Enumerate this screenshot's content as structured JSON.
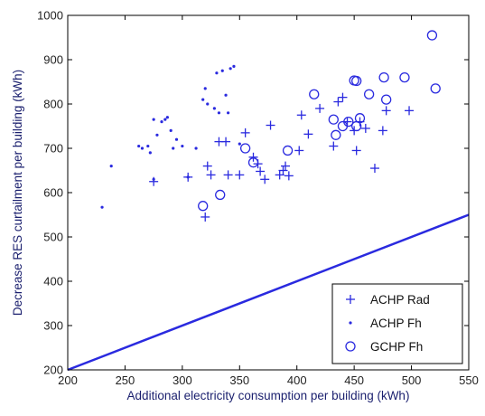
{
  "chart_data": {
    "type": "scatter",
    "title": "",
    "xlabel": "Additional electricity consumption per building (kWh)",
    "ylabel": "Decrease RES curtailment per building (kWh)",
    "xlim": [
      200,
      550
    ],
    "ylim": [
      200,
      1000
    ],
    "xticks": [
      "200",
      "250",
      "300",
      "350",
      "400",
      "450",
      "500",
      "550"
    ],
    "yticks": [
      "200",
      "300",
      "400",
      "500",
      "600",
      "700",
      "800",
      "900",
      "1000"
    ],
    "grid": false,
    "legend_position": "bottom-right",
    "color": "#2a2adf",
    "series": [
      {
        "name": "ACHP Rad",
        "marker": "plus",
        "points": [
          [
            275,
            625
          ],
          [
            305,
            635
          ],
          [
            320,
            545
          ],
          [
            322,
            660
          ],
          [
            325,
            640
          ],
          [
            332,
            715
          ],
          [
            338,
            715
          ],
          [
            340,
            640
          ],
          [
            350,
            640
          ],
          [
            355,
            735
          ],
          [
            362,
            680
          ],
          [
            366,
            665
          ],
          [
            368,
            648
          ],
          [
            372,
            630
          ],
          [
            377,
            752
          ],
          [
            385,
            640
          ],
          [
            388,
            650
          ],
          [
            390,
            660
          ],
          [
            393,
            638
          ],
          [
            402,
            695
          ],
          [
            404,
            775
          ],
          [
            410,
            732
          ],
          [
            420,
            790
          ],
          [
            432,
            705
          ],
          [
            436,
            805
          ],
          [
            440,
            815
          ],
          [
            444,
            760
          ],
          [
            450,
            740
          ],
          [
            452,
            695
          ],
          [
            455,
            760
          ],
          [
            460,
            745
          ],
          [
            468,
            655
          ],
          [
            475,
            740
          ],
          [
            478,
            785
          ],
          [
            498,
            785
          ]
        ]
      },
      {
        "name": "ACHP Fh",
        "marker": "dot",
        "points": [
          [
            230,
            567
          ],
          [
            238,
            660
          ],
          [
            262,
            705
          ],
          [
            265,
            700
          ],
          [
            270,
            705
          ],
          [
            272,
            690
          ],
          [
            275,
            765
          ],
          [
            278,
            730
          ],
          [
            282,
            760
          ],
          [
            285,
            765
          ],
          [
            287,
            770
          ],
          [
            290,
            740
          ],
          [
            292,
            700
          ],
          [
            295,
            720
          ],
          [
            300,
            705
          ],
          [
            312,
            700
          ],
          [
            318,
            810
          ],
          [
            320,
            835
          ],
          [
            322,
            800
          ],
          [
            328,
            790
          ],
          [
            330,
            870
          ],
          [
            332,
            780
          ],
          [
            335,
            875
          ],
          [
            338,
            820
          ],
          [
            340,
            780
          ],
          [
            342,
            880
          ],
          [
            345,
            885
          ],
          [
            305,
            635
          ],
          [
            275,
            630
          ],
          [
            350,
            710
          ]
        ]
      },
      {
        "name": "GCHP Fh",
        "marker": "circle",
        "points": [
          [
            318,
            570
          ],
          [
            333,
            595
          ],
          [
            355,
            700
          ],
          [
            362,
            668
          ],
          [
            392,
            695
          ],
          [
            415,
            822
          ],
          [
            432,
            765
          ],
          [
            434,
            730
          ],
          [
            440,
            750
          ],
          [
            445,
            760
          ],
          [
            450,
            853
          ],
          [
            452,
            852
          ],
          [
            455,
            768
          ],
          [
            463,
            822
          ],
          [
            476,
            860
          ],
          [
            478,
            810
          ],
          [
            494,
            860
          ],
          [
            518,
            955
          ],
          [
            521,
            835
          ],
          [
            452,
            750
          ]
        ]
      }
    ],
    "reference_line": {
      "points": [
        [
          200,
          200
        ],
        [
          550,
          550
        ]
      ]
    }
  }
}
